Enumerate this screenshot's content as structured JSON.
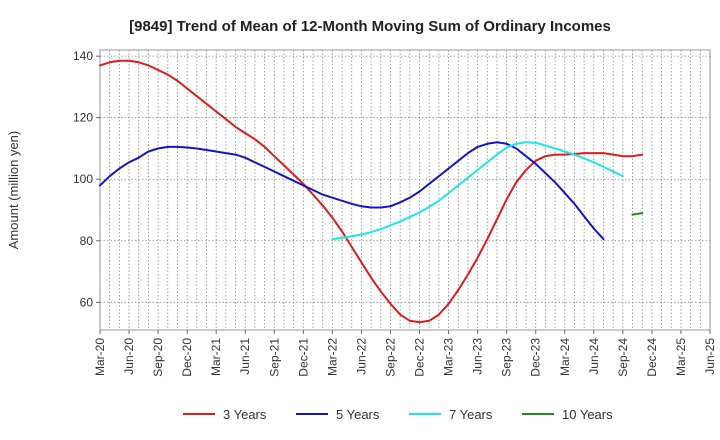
{
  "chart_data": {
    "type": "line",
    "title": "[9849]  Trend of Mean of 12-Month Moving Sum of Ordinary Incomes",
    "xlabel": "",
    "ylabel": "Amount (million yen)",
    "ylim": [
      51,
      142
    ],
    "yticks": [
      60,
      80,
      100,
      120,
      140
    ],
    "grid": true,
    "legend_position": "bottom",
    "x_tick_labels": [
      "Mar-20",
      "Jun-20",
      "Sep-20",
      "Dec-20",
      "Mar-21",
      "Jun-21",
      "Sep-21",
      "Dec-21",
      "Mar-22",
      "Jun-22",
      "Sep-22",
      "Dec-22",
      "Mar-23",
      "Jun-23",
      "Sep-23",
      "Dec-23",
      "Mar-24",
      "Jun-24",
      "Sep-24",
      "Dec-24",
      "Mar-25",
      "Jun-25"
    ],
    "series": [
      {
        "name": "3 Years",
        "color": "#dd1c1c",
        "start_index": 0,
        "values": [
          137,
          138,
          138.5,
          138.5,
          138,
          137,
          135.5,
          134,
          132,
          129.5,
          127,
          124.5,
          122,
          119.5,
          117,
          115,
          113,
          110.5,
          107.5,
          104.5,
          101.5,
          98.5,
          95,
          91.5,
          87.5,
          83,
          78,
          73,
          68,
          63.5,
          59.5,
          56,
          54,
          53.5,
          54,
          56,
          59.5,
          64,
          69,
          74.5,
          80.5,
          87,
          93.5,
          99,
          103,
          106,
          107.5,
          108,
          108,
          108.2,
          108.5,
          108.5,
          108.5,
          108,
          107.5,
          107.5,
          108
        ]
      },
      {
        "name": "5 Years",
        "color": "#1515c8",
        "start_index": 0,
        "values": [
          98,
          101,
          103.5,
          105.5,
          107,
          109,
          110,
          110.5,
          110.5,
          110.3,
          110,
          109.5,
          109,
          108.5,
          108,
          107,
          105.5,
          104,
          102.5,
          101,
          99.5,
          98,
          96.5,
          95,
          94,
          93,
          92,
          91.2,
          90.8,
          90.8,
          91.2,
          92.5,
          94,
          96,
          98.5,
          101,
          103.5,
          106,
          108.5,
          110.5,
          111.5,
          112,
          111.5,
          110,
          107.5,
          105,
          102,
          99,
          95.5,
          92,
          88,
          84,
          80.5
        ]
      },
      {
        "name": "7 Years",
        "color": "#1ce6e6",
        "start_index": 24,
        "values": [
          80.5,
          81,
          81.5,
          82,
          82.8,
          83.8,
          85,
          86.3,
          87.7,
          89.2,
          91,
          93,
          95.5,
          98,
          100.5,
          103,
          105.5,
          108,
          110.3,
          111.5,
          112,
          111.8,
          111,
          110,
          109,
          108,
          106.8,
          105.5,
          104,
          102.5,
          101
        ]
      },
      {
        "name": "10 Years",
        "color": "#228b22",
        "start_index": 55,
        "values": [
          88.5,
          89
        ]
      }
    ]
  }
}
